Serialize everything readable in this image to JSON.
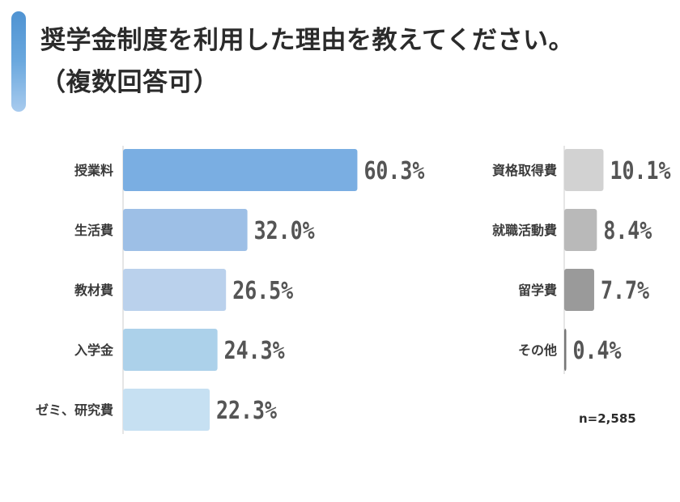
{
  "title": "奨学金制度を利用した理由を教えてください。",
  "subtitle": "（複数回答可）",
  "note": "n=2,585",
  "chart_data": [
    {
      "type": "bar",
      "orientation": "horizontal",
      "categories": [
        "授業料",
        "生活費",
        "教材費",
        "入学金",
        "ゼミ、研究費"
      ],
      "values": [
        60.3,
        32.0,
        26.5,
        24.3,
        22.3
      ],
      "value_labels": [
        "60.3%",
        "32.0%",
        "26.5%",
        "24.3%",
        "22.3%"
      ],
      "colors": [
        "#7aaee2",
        "#9dbfe6",
        "#bad1ec",
        "#acd1ea",
        "#c6e0f2"
      ]
    },
    {
      "type": "bar",
      "orientation": "horizontal",
      "categories": [
        "資格取得費",
        "就職活動費",
        "留学費",
        "その他"
      ],
      "values": [
        10.1,
        8.4,
        7.7,
        0.4
      ],
      "value_labels": [
        "10.1%",
        "8.4%",
        "7.7%",
        "0.4%"
      ],
      "colors": [
        "#d2d2d2",
        "#b9b9b9",
        "#9a9a9a",
        "#777777"
      ]
    }
  ]
}
